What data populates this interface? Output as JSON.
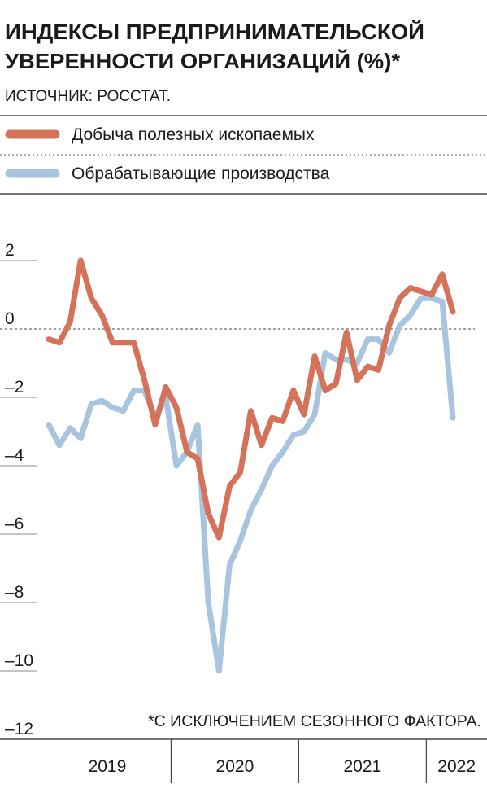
{
  "chart_data": {
    "type": "line",
    "title": [
      "ИНДЕКСЫ ПРЕДПРИНИМАТЕЛЬСКОЙ",
      "УВЕРЕННОСТИ ОРГАНИЗАЦИЙ (%)*"
    ],
    "subtitle": "ИСТОЧНИК: РОССТАТ.",
    "annotation": "*С ИСКЛЮЧЕНИЕМ СЕЗОННОГО ФАКТОРА.",
    "categories": [
      null,
      null,
      null,
      null,
      null,
      null,
      null,
      null,
      null,
      null,
      null,
      null,
      null,
      null,
      null,
      null,
      null,
      null,
      null,
      null,
      null,
      null,
      null,
      null,
      null,
      null,
      null,
      null,
      null,
      null,
      null,
      null,
      null,
      null,
      null,
      null,
      null,
      null,
      null
    ],
    "groups": [
      {
        "label": "2019",
        "count": 12
      },
      {
        "label": "2020",
        "count": 12
      },
      {
        "label": "2021",
        "count": 12
      },
      {
        "label": "2022",
        "count": 3
      }
    ],
    "series": [
      {
        "name": "Добыча полезных ископаемых",
        "color": "#d4735a",
        "values": [
          -0.3,
          -0.4,
          0.2,
          2.0,
          0.9,
          0.4,
          -0.4,
          -0.4,
          -0.4,
          -1.5,
          -2.8,
          -1.7,
          -2.3,
          -3.6,
          -3.8,
          -5.4,
          -6.1,
          -4.6,
          -4.2,
          -2.4,
          -3.4,
          -2.6,
          -2.7,
          -1.8,
          -2.5,
          -0.8,
          -1.8,
          -1.6,
          -0.1,
          -1.5,
          -1.1,
          -1.2,
          0.1,
          0.9,
          1.2,
          1.1,
          1.0,
          1.6,
          0.5
        ]
      },
      {
        "name": "Обрабатывающие производства",
        "color": "#a9c4de",
        "values": [
          -2.8,
          -3.4,
          -2.9,
          -3.2,
          -2.2,
          -2.1,
          -2.3,
          -2.4,
          -1.8,
          -1.8,
          -2.6,
          -2.0,
          -4.0,
          -3.6,
          -2.8,
          -8.0,
          -10.0,
          -6.9,
          -6.2,
          -5.3,
          -4.7,
          -4.0,
          -3.6,
          -3.1,
          -3.0,
          -2.5,
          -0.7,
          -0.9,
          -0.9,
          -1.0,
          -0.3,
          -0.3,
          -0.7,
          0.1,
          0.4,
          0.9,
          0.9,
          0.8,
          -2.6
        ]
      }
    ],
    "ylim": [
      -12,
      2
    ],
    "yticks": [
      2,
      0,
      {
        "value": -2,
        "label": "–2"
      },
      {
        "value": -4,
        "label": "–4"
      },
      {
        "value": -6,
        "label": "–6"
      },
      {
        "value": -8,
        "label": "–8"
      },
      {
        "value": -10,
        "label": "–10"
      },
      {
        "value": -12,
        "label": "–12"
      }
    ]
  }
}
